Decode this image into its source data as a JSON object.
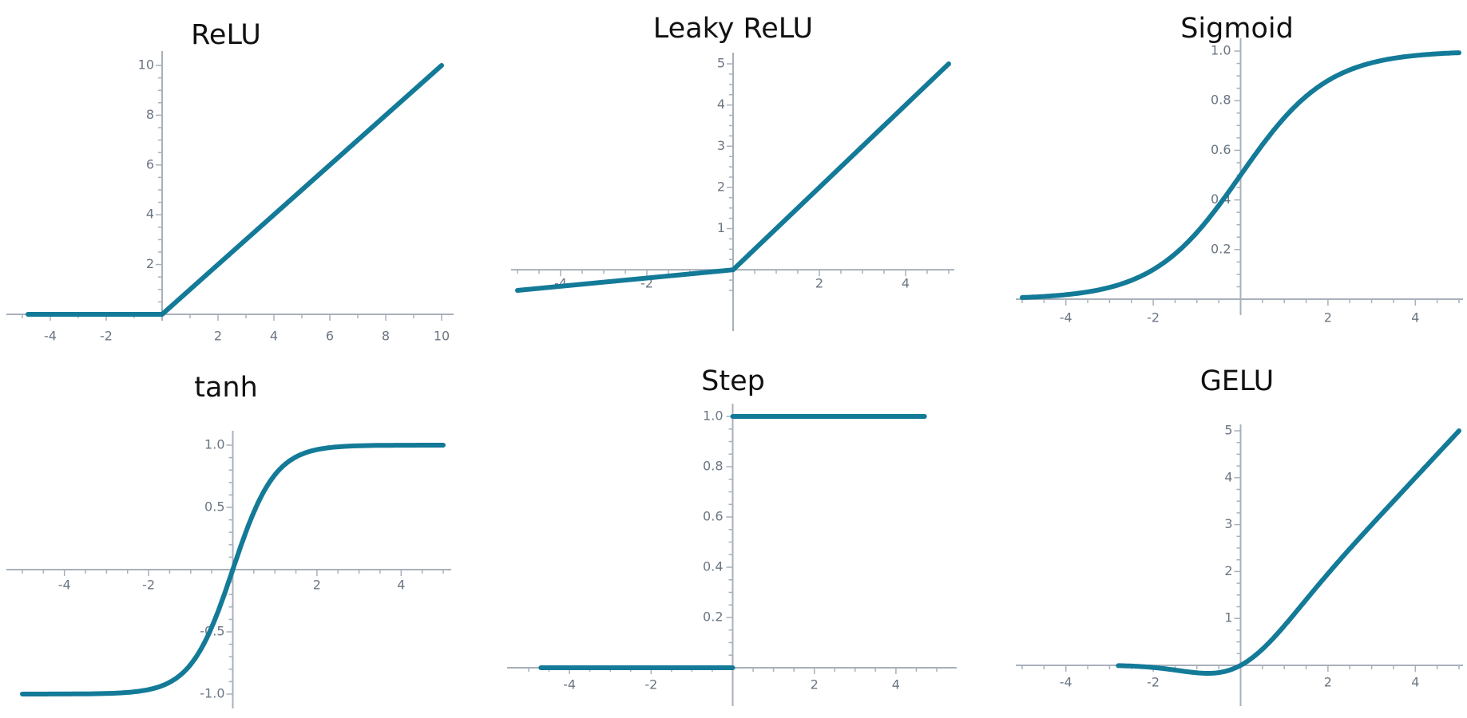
{
  "chart_data": [
    {
      "type": "line",
      "title": "ReLU",
      "xlim": [
        -5,
        10
      ],
      "ylim": [
        0,
        10
      ],
      "xticks": [
        -4,
        -2,
        2,
        4,
        6,
        8,
        10
      ],
      "xtick_labels": [
        "-4",
        "-2",
        "2",
        "4",
        "6",
        "8",
        "10"
      ],
      "yticks": [
        2,
        4,
        6,
        8,
        10
      ],
      "ytick_labels": [
        "2",
        "4",
        "6",
        "8",
        "10"
      ],
      "series": [
        {
          "x": [
            -4.8,
            0,
            10
          ],
          "y": [
            0,
            0,
            10
          ]
        }
      ]
    },
    {
      "type": "line",
      "title": "Leaky ReLU",
      "xlim": [
        -5,
        5
      ],
      "ylim": [
        -0.5,
        5
      ],
      "xticks": [
        -4,
        -2,
        2,
        4
      ],
      "xtick_labels": [
        "-4",
        "-2",
        "2",
        "4"
      ],
      "yticks": [
        1,
        2,
        3,
        4,
        5
      ],
      "ytick_labels": [
        "1",
        "2",
        "3",
        "4",
        "5"
      ],
      "series": [
        {
          "x": [
            -5,
            0,
            5
          ],
          "y": [
            -0.5,
            0,
            5
          ]
        }
      ]
    },
    {
      "type": "line",
      "title": "Sigmoid",
      "function": "sigmoid",
      "xlim": [
        -5,
        5
      ],
      "ylim": [
        0,
        1
      ],
      "xticks": [
        -4,
        -2,
        2,
        4
      ],
      "xtick_labels": [
        "-4",
        "-2",
        "2",
        "4"
      ],
      "yticks": [
        0.2,
        0.4,
        0.6,
        0.8,
        1.0
      ],
      "ytick_labels": [
        "0.2",
        "0.4",
        "0.6",
        "0.8",
        "1.0"
      ],
      "series": [
        {
          "x": [
            -5,
            -4,
            -3,
            -2,
            -1,
            0,
            1,
            2,
            3,
            4,
            5
          ],
          "y": [
            0.007,
            0.018,
            0.047,
            0.119,
            0.269,
            0.5,
            0.731,
            0.881,
            0.953,
            0.982,
            0.993
          ]
        }
      ]
    },
    {
      "type": "line",
      "title": "tanh",
      "function": "tanh",
      "xlim": [
        -5,
        5
      ],
      "ylim": [
        -1,
        1
      ],
      "xticks": [
        -4,
        -2,
        2,
        4
      ],
      "xtick_labels": [
        "-4",
        "-2",
        "2",
        "4"
      ],
      "yticks": [
        -1.0,
        -0.5,
        0.5,
        1.0
      ],
      "ytick_labels": [
        "-1.0",
        "-0.5",
        "0.5",
        "1.0"
      ],
      "series": [
        {
          "x": [
            -5,
            -3,
            -2,
            -1,
            0,
            1,
            2,
            3,
            5
          ],
          "y": [
            -1,
            -0.995,
            -0.964,
            -0.762,
            0,
            0.762,
            0.964,
            0.995,
            1
          ]
        }
      ]
    },
    {
      "type": "line",
      "title": "Step",
      "xlim": [
        -5,
        5
      ],
      "ylim": [
        0,
        1
      ],
      "xticks": [
        -4,
        -2,
        2,
        4
      ],
      "xtick_labels": [
        "-4",
        "-2",
        "2",
        "4"
      ],
      "yticks": [
        0.2,
        0.4,
        0.6,
        0.8,
        1.0
      ],
      "ytick_labels": [
        "0.2",
        "0.4",
        "0.6",
        "0.8",
        "1.0"
      ],
      "series": [
        {
          "x": [
            -4.7,
            0
          ],
          "y": [
            0,
            0
          ]
        },
        {
          "x": [
            0,
            4.7
          ],
          "y": [
            1,
            1
          ]
        }
      ]
    },
    {
      "type": "line",
      "title": "GELU",
      "function": "gelu",
      "xlim": [
        -5,
        5
      ],
      "ylim": [
        0,
        5
      ],
      "xticks": [
        -4,
        -2,
        2,
        4
      ],
      "xtick_labels": [
        "-4",
        "-2",
        "2",
        "4"
      ],
      "yticks": [
        1,
        2,
        3,
        4,
        5
      ],
      "ytick_labels": [
        "1",
        "2",
        "3",
        "4",
        "5"
      ],
      "series": [
        {
          "x": [
            -2.8,
            -2,
            -1,
            -0.5,
            0,
            1,
            2,
            3,
            4,
            5
          ],
          "y": [
            -0.007,
            -0.045,
            -0.159,
            -0.154,
            0,
            0.841,
            1.955,
            2.996,
            4.0,
            5.0
          ]
        }
      ]
    }
  ]
}
